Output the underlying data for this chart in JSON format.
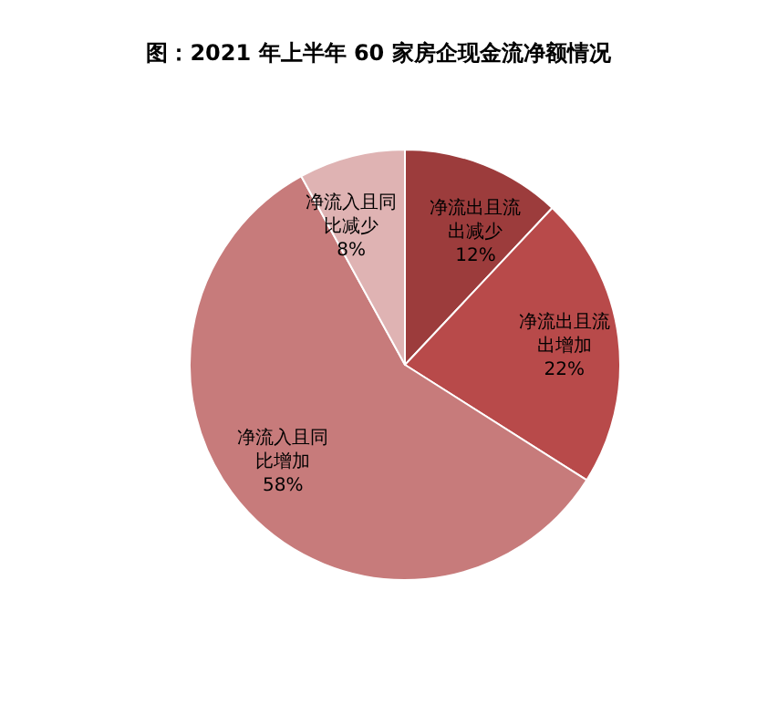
{
  "chart_data": {
    "type": "pie",
    "title": "图：2021 年上半年 60 家房企现金流净额情况",
    "categories": [
      "净流出且流出减少",
      "净流出且流出增加",
      "净流入且同比增加",
      "净流入且同比减少"
    ],
    "values": [
      12,
      22,
      58,
      8
    ],
    "colors": [
      "#9c3c3c",
      "#b84a4a",
      "#c77b7b",
      "#dfb3b3"
    ],
    "value_labels": [
      "12%",
      "22%",
      "58%",
      "8%"
    ],
    "legend": false
  }
}
